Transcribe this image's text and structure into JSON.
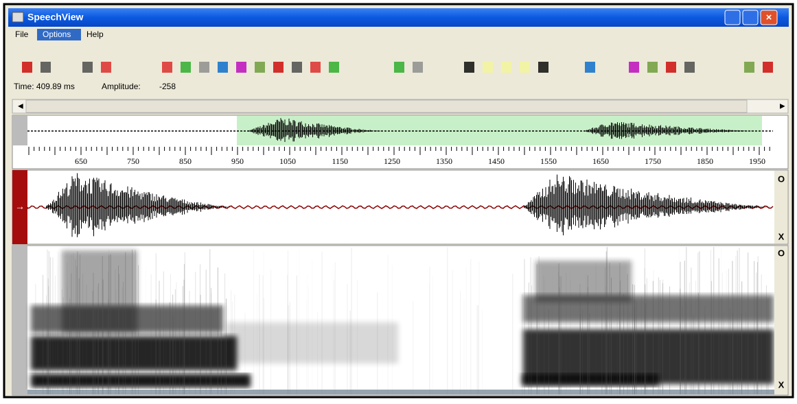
{
  "window": {
    "title": "SpeechView"
  },
  "menu": [
    "File",
    "Options",
    "Help"
  ],
  "status": {
    "time": "Time: 409.89 ms",
    "amplitude_label": "Amplitude:",
    "amplitude": "-258"
  },
  "ruler": {
    "labels": [
      650,
      750,
      850,
      950,
      1050,
      1150,
      1250,
      1350,
      1450,
      1550,
      1650,
      1750,
      1850,
      1950
    ]
  },
  "panels": {
    "waveform": {
      "open": "O",
      "close": "X"
    },
    "spectrogram": {
      "open": "O",
      "close": "X"
    }
  }
}
